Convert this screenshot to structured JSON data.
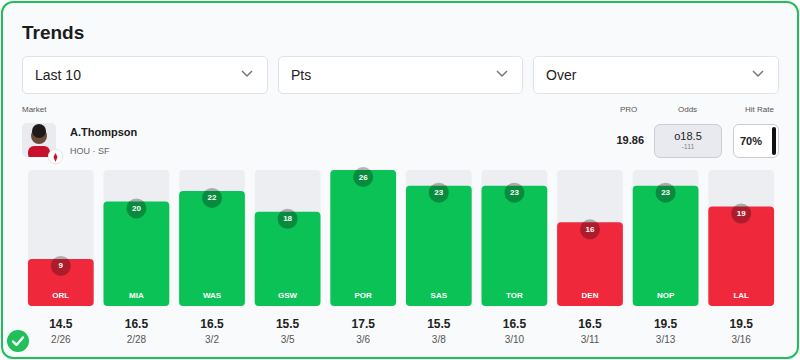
{
  "title": "Trends",
  "filters": [
    "Last 10",
    "Pts",
    "Over"
  ],
  "player": {
    "market_label": "Market",
    "name": "A.Thompson",
    "team": "HOU · SF"
  },
  "summary": {
    "pro_label": "PRO",
    "pro": 19.86,
    "odds_label": "Odds",
    "line": "o18.5",
    "odds": "-111",
    "hit_rate_label": "Hit Rate",
    "hit_rate": "70%"
  },
  "chart_data": {
    "type": "bar",
    "categories": [
      "ORL",
      "MIA",
      "WAS",
      "GSW",
      "POR",
      "SAS",
      "TOR",
      "DEN",
      "NOP",
      "LAL"
    ],
    "values": [
      9,
      20,
      22,
      18,
      26,
      23,
      23,
      16,
      23,
      19
    ],
    "colors": [
      "#f0283c",
      "#0bc257",
      "#0bc257",
      "#0bc257",
      "#0bc257",
      "#0bc257",
      "#0bc257",
      "#f0283c",
      "#0bc257",
      "#f0283c"
    ],
    "lines": [
      14.5,
      16.5,
      16.5,
      15.5,
      17.5,
      15.5,
      16.5,
      16.5,
      19.5,
      19.5
    ],
    "dates": [
      "2/26",
      "2/28",
      "3/2",
      "3/5",
      "3/6",
      "3/8",
      "3/10",
      "3/11",
      "3/13",
      "3/16"
    ],
    "ylim": [
      0,
      26
    ],
    "data_labels": true,
    "tick_labels": "x",
    "grid": false
  }
}
